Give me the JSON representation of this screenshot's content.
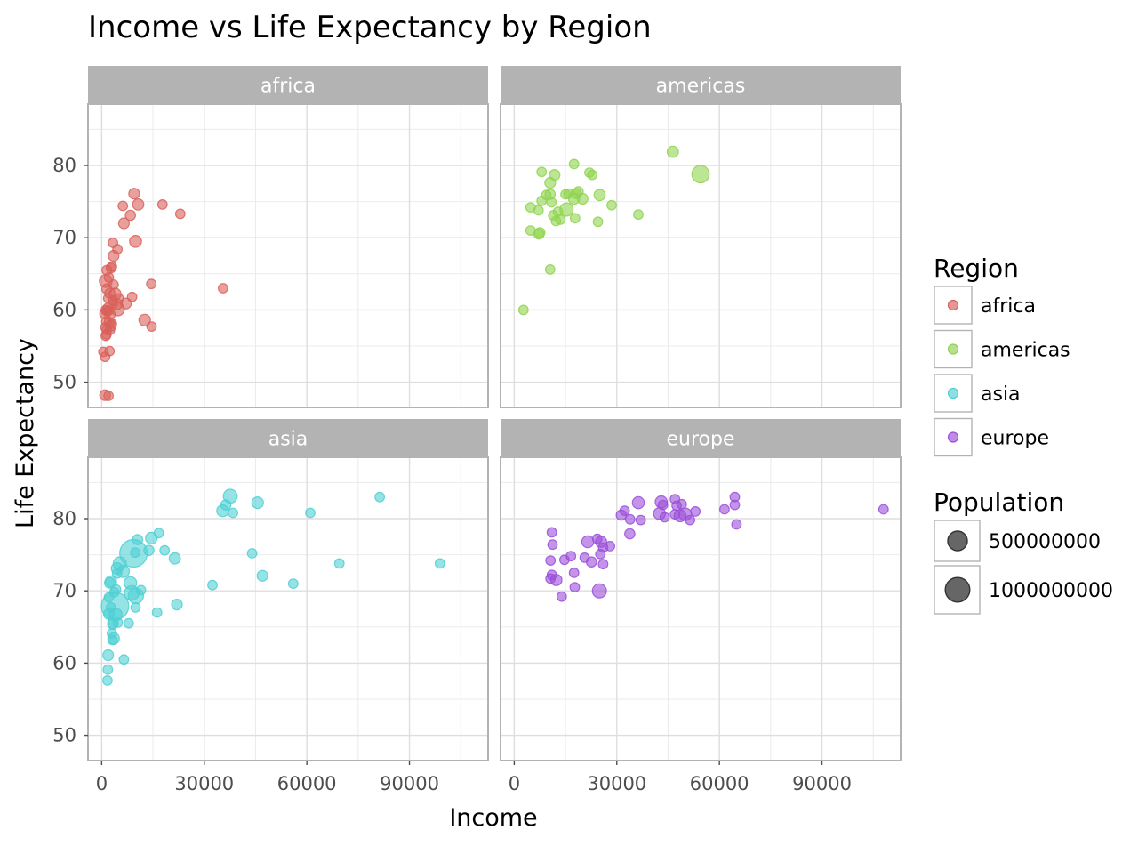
{
  "chart_data": {
    "type": "scatter",
    "title": "Income vs Life Expectancy by Region",
    "xlabel": "Income",
    "ylabel": "Life Expectancy",
    "xlim": [
      -4000,
      113000
    ],
    "ylim": [
      46.5,
      88.5
    ],
    "x_ticks": [
      0,
      30000,
      60000,
      90000
    ],
    "y_ticks": [
      50,
      60,
      70,
      80
    ],
    "grid": true,
    "legend_placement": "right",
    "color_legend": {
      "title": "Region",
      "entries": [
        {
          "name": "africa",
          "color": "#d9605a"
        },
        {
          "name": "americas",
          "color": "#8fd34f"
        },
        {
          "name": "asia",
          "color": "#4fd0d3"
        },
        {
          "name": "europe",
          "color": "#9b4fd9"
        }
      ]
    },
    "size_legend": {
      "title": "Population",
      "entries": [
        {
          "label": "500000000",
          "value": 500000000
        },
        {
          "label": "1000000000",
          "value": 1000000000
        }
      ]
    },
    "panels": [
      {
        "name": "africa",
        "color": "#d9605a",
        "points": [
          [
            1000,
            48.2
          ],
          [
            2000,
            48.1
          ],
          [
            500,
            54.2
          ],
          [
            2300,
            54.3
          ],
          [
            1000,
            53.5
          ],
          [
            1000,
            59.5
          ],
          [
            1500,
            59.8
          ],
          [
            1800,
            60.3
          ],
          [
            2600,
            59.4
          ],
          [
            1400,
            58.4
          ],
          [
            2200,
            58.3
          ],
          [
            2700,
            57.8
          ],
          [
            1100,
            57.6
          ],
          [
            1500,
            57.2
          ],
          [
            1400,
            56.6
          ],
          [
            2400,
            57.2
          ],
          [
            3000,
            58.1
          ],
          [
            1200,
            56.4
          ],
          [
            1200,
            64.0
          ],
          [
            2100,
            64.5
          ],
          [
            1500,
            65.5
          ],
          [
            2700,
            65.8
          ],
          [
            3000,
            66.0
          ],
          [
            3500,
            63.5
          ],
          [
            1500,
            62.9
          ],
          [
            2400,
            62.3
          ],
          [
            1900,
            61.6
          ],
          [
            3300,
            61.3
          ],
          [
            3900,
            62.2
          ],
          [
            3200,
            60.8
          ],
          [
            4500,
            60.8
          ],
          [
            5000,
            61.6
          ],
          [
            4700,
            60.1
          ],
          [
            1200,
            60.0
          ],
          [
            2000,
            59.9
          ],
          [
            3500,
            67.5
          ],
          [
            4600,
            68.4
          ],
          [
            3300,
            69.3
          ],
          [
            6500,
            72.0
          ],
          [
            6200,
            74.4
          ],
          [
            8400,
            73.1
          ],
          [
            9500,
            76.1
          ],
          [
            10700,
            74.6
          ],
          [
            17800,
            74.6
          ],
          [
            23000,
            73.3
          ],
          [
            9900,
            69.5
          ],
          [
            7100,
            60.9
          ],
          [
            8900,
            61.8
          ],
          [
            14500,
            63.6
          ],
          [
            12600,
            58.6
          ],
          [
            14600,
            57.7
          ],
          [
            35500,
            63.0
          ]
        ],
        "populations": [
          30000000,
          10000000,
          10000000,
          10000000,
          10000000,
          30000000,
          10000000,
          10000000,
          10000000,
          15000000,
          15000000,
          30000000,
          10000000,
          10000000,
          10000000,
          10000000,
          10000000,
          10000000,
          90000000,
          10000000,
          15000000,
          15000000,
          10000000,
          10000000,
          20000000,
          20000000,
          10000000,
          10000000,
          60000000,
          10000000,
          30000000,
          10000000,
          100000000,
          10000000,
          10000000,
          30000000,
          10000000,
          10000000,
          30000000,
          10000000,
          20000000,
          30000000,
          40000000,
          10000000,
          10000000,
          60000000,
          30000000,
          10000000,
          10000000,
          50000000,
          10000000,
          10000000
        ]
      },
      {
        "name": "americas",
        "color": "#8fd34f",
        "points": [
          [
            2700,
            60.0
          ],
          [
            10500,
            65.6
          ],
          [
            7200,
            70.5
          ],
          [
            4800,
            71.0
          ],
          [
            7500,
            70.7
          ],
          [
            4800,
            74.2
          ],
          [
            7100,
            73.8
          ],
          [
            8000,
            75.1
          ],
          [
            10500,
            76.0
          ],
          [
            10500,
            77.6
          ],
          [
            11800,
            78.7
          ],
          [
            8000,
            79.1
          ],
          [
            9400,
            75.9
          ],
          [
            10900,
            74.9
          ],
          [
            11400,
            73.1
          ],
          [
            12200,
            72.3
          ],
          [
            12800,
            73.6
          ],
          [
            13500,
            72.5
          ],
          [
            15000,
            76.0
          ],
          [
            15900,
            76.1
          ],
          [
            15300,
            73.9
          ],
          [
            17500,
            75.4
          ],
          [
            18100,
            76.1
          ],
          [
            18800,
            76.4
          ],
          [
            17800,
            72.7
          ],
          [
            20000,
            75.4
          ],
          [
            17500,
            80.2
          ],
          [
            22000,
            79.0
          ],
          [
            22800,
            78.7
          ],
          [
            24500,
            72.2
          ],
          [
            25000,
            75.9
          ],
          [
            28500,
            74.5
          ],
          [
            36300,
            73.2
          ],
          [
            46400,
            81.9
          ],
          [
            54500,
            78.8
          ]
        ],
        "populations": [
          10000000,
          10000000,
          20000000,
          10000000,
          20000000,
          10000000,
          10000000,
          10000000,
          20000000,
          30000000,
          30000000,
          10000000,
          10000000,
          10000000,
          10000000,
          10000000,
          10000000,
          10000000,
          10000000,
          10000000,
          100000000,
          40000000,
          20000000,
          10000000,
          10000000,
          30000000,
          10000000,
          10000000,
          10000000,
          10000000,
          40000000,
          10000000,
          10000000,
          40000000,
          330000000
        ]
      },
      {
        "name": "asia",
        "color": "#4fd0d3",
        "points": [
          [
            1700,
            57.6
          ],
          [
            1800,
            59.1
          ],
          [
            1900,
            61.1
          ],
          [
            2100,
            66.8
          ],
          [
            3200,
            65.4
          ],
          [
            3000,
            64.1
          ],
          [
            3500,
            63.4
          ],
          [
            3200,
            63.2
          ],
          [
            2100,
            69.1
          ],
          [
            2700,
            67.7
          ],
          [
            2400,
            71.1
          ],
          [
            2700,
            71.3
          ],
          [
            4500,
            72.4
          ],
          [
            4200,
            70.2
          ],
          [
            3700,
            69.8
          ],
          [
            3900,
            67.9
          ],
          [
            4100,
            66.7
          ],
          [
            3300,
            65.5
          ],
          [
            4700,
            65.6
          ],
          [
            6500,
            60.5
          ],
          [
            7900,
            65.5
          ],
          [
            8800,
            69.7
          ],
          [
            10000,
            69.3
          ],
          [
            8400,
            71.1
          ],
          [
            9900,
            67.7
          ],
          [
            4500,
            73.1
          ],
          [
            5300,
            73.8
          ],
          [
            6300,
            72.7
          ],
          [
            11500,
            70.1
          ],
          [
            10500,
            77.1
          ],
          [
            9300,
            75.2
          ],
          [
            9800,
            75.3
          ],
          [
            13800,
            75.6
          ],
          [
            14500,
            77.3
          ],
          [
            16700,
            78.0
          ],
          [
            18400,
            75.6
          ],
          [
            21400,
            74.5
          ],
          [
            16200,
            67.0
          ],
          [
            22000,
            68.1
          ],
          [
            32400,
            70.8
          ],
          [
            35400,
            81.1
          ],
          [
            36300,
            81.9
          ],
          [
            37600,
            83.1
          ],
          [
            38400,
            80.8
          ],
          [
            44000,
            75.2
          ],
          [
            45600,
            82.2
          ],
          [
            47000,
            72.1
          ],
          [
            56000,
            71.0
          ],
          [
            61000,
            80.8
          ],
          [
            69500,
            73.8
          ],
          [
            81300,
            83.0
          ],
          [
            98900,
            73.8
          ]
        ],
        "populations": [
          10000000,
          10000000,
          30000000,
          30000000,
          20000000,
          10000000,
          50000000,
          10000000,
          10000000,
          10000000,
          30000000,
          40000000,
          10000000,
          10000000,
          10000000,
          1366000000,
          90000000,
          30000000,
          10000000,
          10000000,
          10000000,
          160000000,
          200000000,
          80000000,
          10000000,
          50000000,
          100000000,
          70000000,
          10000000,
          20000000,
          1400000000,
          10000000,
          20000000,
          50000000,
          10000000,
          10000000,
          40000000,
          10000000,
          30000000,
          10000000,
          60000000,
          20000000,
          130000000,
          10000000,
          10000000,
          50000000,
          30000000,
          10000000,
          10000000,
          10000000,
          10000000,
          10000000
        ]
      },
      {
        "name": "europe",
        "color": "#9b4fd9",
        "points": [
          [
            10600,
            71.7
          ],
          [
            11000,
            72.2
          ],
          [
            12300,
            71.5
          ],
          [
            13900,
            69.2
          ],
          [
            10600,
            74.2
          ],
          [
            11200,
            76.4
          ],
          [
            11000,
            78.1
          ],
          [
            14700,
            74.3
          ],
          [
            16600,
            74.8
          ],
          [
            17500,
            72.5
          ],
          [
            17700,
            70.5
          ],
          [
            20600,
            74.6
          ],
          [
            22600,
            74.0
          ],
          [
            21500,
            76.8
          ],
          [
            24300,
            77.2
          ],
          [
            25400,
            76.8
          ],
          [
            25200,
            75.1
          ],
          [
            26000,
            76.0
          ],
          [
            28000,
            76.2
          ],
          [
            26000,
            73.7
          ],
          [
            24900,
            70.0
          ],
          [
            33800,
            77.9
          ],
          [
            31300,
            80.5
          ],
          [
            32300,
            81.1
          ],
          [
            33900,
            79.9
          ],
          [
            37000,
            79.8
          ],
          [
            36300,
            82.2
          ],
          [
            42500,
            80.7
          ],
          [
            43000,
            82.3
          ],
          [
            43500,
            81.9
          ],
          [
            44000,
            80.2
          ],
          [
            47000,
            82.7
          ],
          [
            47000,
            80.6
          ],
          [
            47500,
            81.8
          ],
          [
            48500,
            80.4
          ],
          [
            49000,
            82.0
          ],
          [
            50000,
            80.6
          ],
          [
            51400,
            79.8
          ],
          [
            53000,
            81.0
          ],
          [
            61500,
            81.3
          ],
          [
            64500,
            83.0
          ],
          [
            64500,
            81.9
          ],
          [
            65000,
            79.2
          ],
          [
            108000,
            81.3
          ]
        ],
        "populations": [
          10000000,
          10000000,
          40000000,
          10000000,
          10000000,
          10000000,
          10000000,
          10000000,
          10000000,
          10000000,
          10000000,
          10000000,
          20000000,
          60000000,
          10000000,
          40000000,
          10000000,
          10000000,
          10000000,
          10000000,
          140000000,
          20000000,
          20000000,
          10000000,
          10000000,
          10000000,
          60000000,
          60000000,
          65000000,
          10000000,
          10000000,
          10000000,
          10000000,
          10000000,
          60000000,
          10000000,
          80000000,
          10000000,
          10000000,
          10000000,
          10000000,
          10000000,
          10000000,
          10000000
        ]
      }
    ]
  }
}
